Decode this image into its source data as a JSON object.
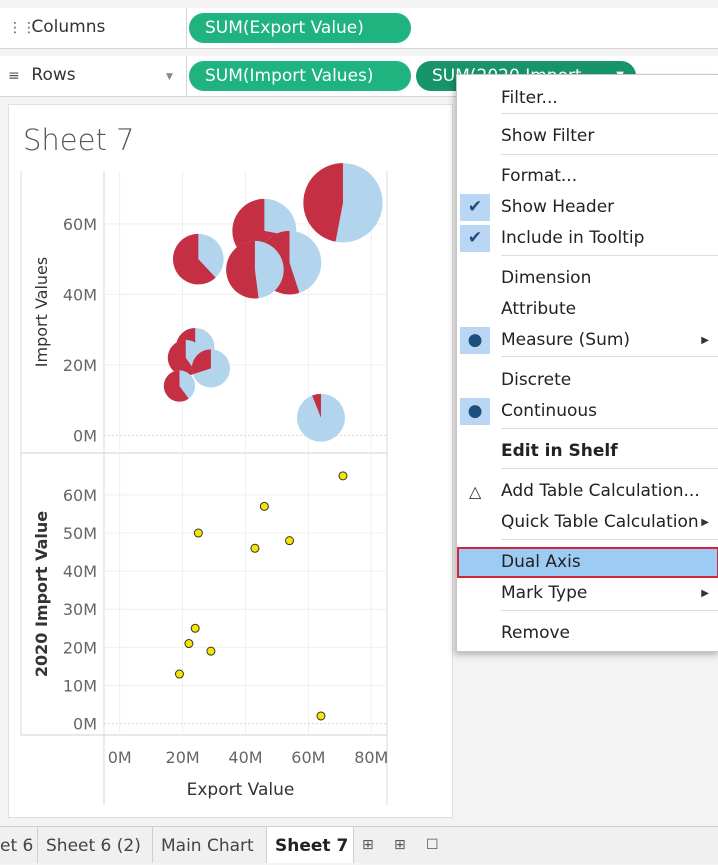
{
  "shelves": {
    "columns": {
      "label": "Columns",
      "icon": "columns-icon",
      "pills": [
        "SUM(Export Value)"
      ]
    },
    "rows": {
      "label": "Rows",
      "icon": "rows-icon",
      "pills": [
        "SUM(Import Values)",
        "SUM(2020 Import..."
      ]
    }
  },
  "sheet": {
    "title": "Sheet 7"
  },
  "colors": {
    "pill": "#1fb37f",
    "pie_red": "#c52f44",
    "pie_blue": "#b2d4ec",
    "dot": "#f5e600",
    "highlight": "#9ccbf3",
    "highlight_border": "#d4253a"
  },
  "chart_data": [
    {
      "type": "scatter",
      "mark": "pie",
      "ylabel": "Import Values",
      "yticks": [
        "0M",
        "20M",
        "40M",
        "60M"
      ],
      "ylim": [
        -5,
        75
      ],
      "xlim": [
        -5,
        85
      ],
      "points": [
        {
          "x": 71,
          "y": 66,
          "red_share": 0.47
        },
        {
          "x": 46,
          "y": 58,
          "red_share": 0.72
        },
        {
          "x": 54,
          "y": 49,
          "red_share": 0.55
        },
        {
          "x": 43,
          "y": 47,
          "red_share": 0.52
        },
        {
          "x": 25,
          "y": 50,
          "red_share": 0.62
        },
        {
          "x": 24,
          "y": 25,
          "red_share": 0.5
        },
        {
          "x": 21,
          "y": 22,
          "red_share": 0.6
        },
        {
          "x": 29,
          "y": 19,
          "red_share": 0.3
        },
        {
          "x": 19,
          "y": 14,
          "red_share": 0.6
        },
        {
          "x": 64,
          "y": 5,
          "red_share": 0.06
        }
      ]
    },
    {
      "type": "scatter",
      "mark": "circle",
      "ylabel": "2020 Import Value",
      "xlabel": "Export Value",
      "yticks": [
        "0M",
        "10M",
        "20M",
        "30M",
        "40M",
        "50M",
        "60M"
      ],
      "xticks": [
        "0M",
        "20M",
        "40M",
        "60M",
        "80M"
      ],
      "ylim": [
        -3,
        71
      ],
      "xlim": [
        -5,
        85
      ],
      "points": [
        {
          "x": 71,
          "y": 65
        },
        {
          "x": 46,
          "y": 57
        },
        {
          "x": 25,
          "y": 50
        },
        {
          "x": 54,
          "y": 48
        },
        {
          "x": 43,
          "y": 46
        },
        {
          "x": 24,
          "y": 25
        },
        {
          "x": 22,
          "y": 21
        },
        {
          "x": 29,
          "y": 19
        },
        {
          "x": 19,
          "y": 13
        },
        {
          "x": 64,
          "y": 2
        }
      ]
    }
  ],
  "menu": {
    "items": [
      {
        "label": "Filter...",
        "mark": ""
      },
      {
        "label": "Show Filter",
        "mark": ""
      },
      {
        "label": "Format...",
        "mark": ""
      },
      {
        "label": "Show Header",
        "mark": "check"
      },
      {
        "label": "Include in Tooltip",
        "mark": "check"
      },
      {
        "label": "Dimension",
        "mark": ""
      },
      {
        "label": "Attribute",
        "mark": ""
      },
      {
        "label": "Measure (Sum)",
        "mark": "dot",
        "submenu": true
      },
      {
        "label": "Discrete",
        "mark": ""
      },
      {
        "label": "Continuous",
        "mark": "dot"
      },
      {
        "label": "Edit in Shelf",
        "mark": "",
        "bold": true
      },
      {
        "label": "Add Table Calculation...",
        "mark": "delta"
      },
      {
        "label": "Quick Table Calculation",
        "mark": "",
        "submenu": true
      },
      {
        "label": "Dual Axis",
        "mark": "",
        "highlight": true
      },
      {
        "label": "Mark Type",
        "mark": "",
        "submenu": true
      },
      {
        "label": "Remove",
        "mark": ""
      }
    ]
  },
  "tabs": {
    "items": [
      {
        "label": "et 6",
        "active": false
      },
      {
        "label": "Sheet 6 (2)",
        "active": false
      },
      {
        "label": "Main Chart",
        "active": false
      },
      {
        "label": "Sheet 7",
        "active": true
      }
    ],
    "icons": [
      "new-worksheet-icon",
      "new-dashboard-icon",
      "new-story-icon"
    ]
  }
}
